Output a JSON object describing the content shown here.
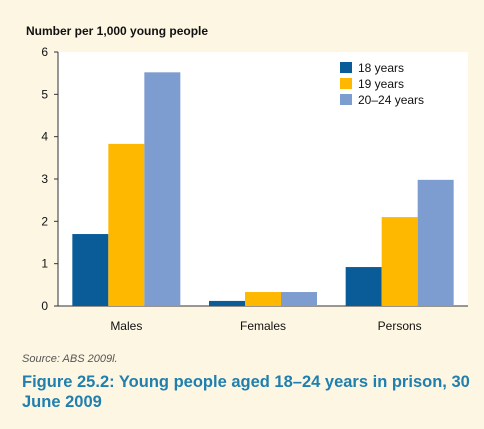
{
  "chart_data": {
    "type": "bar",
    "ylabel": "Number per 1,000 young people",
    "ylim": [
      0,
      6
    ],
    "yticks": [
      "0",
      "1",
      "2",
      "3",
      "4",
      "5",
      "6"
    ],
    "categories": [
      "Males",
      "Females",
      "Persons"
    ],
    "series": [
      {
        "name": "18 years",
        "values": [
          1.7,
          0.12,
          0.92
        ],
        "color": "#0a5c99"
      },
      {
        "name": "19 years",
        "values": [
          3.83,
          0.33,
          2.1
        ],
        "color": "#ffb800"
      },
      {
        "name": "20–24 years",
        "values": [
          5.52,
          0.33,
          2.98
        ],
        "color": "#7d9ccf"
      }
    ],
    "grid": false,
    "legend": "top-right"
  },
  "source": "Source: ABS 2009l.",
  "caption": "Figure 25.2: Young people aged 18–24 years in prison, 30 June 2009",
  "colors": {
    "background": "#fdf6e3",
    "plot_background": "#ffffff",
    "caption": "#1f7fae"
  }
}
